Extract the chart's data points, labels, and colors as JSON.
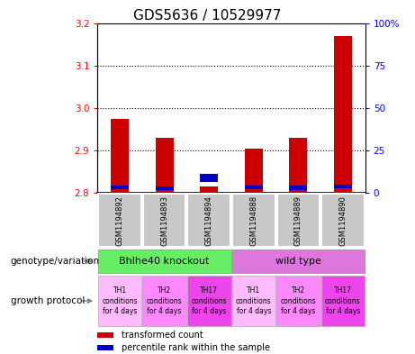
{
  "title": "GDS5636 / 10529977",
  "samples": [
    "GSM1194892",
    "GSM1194893",
    "GSM1194894",
    "GSM1194888",
    "GSM1194889",
    "GSM1194890"
  ],
  "red_values": [
    2.975,
    2.93,
    2.815,
    2.905,
    2.93,
    3.17
  ],
  "blue_values": [
    2.808,
    2.806,
    2.825,
    2.808,
    2.807,
    2.81
  ],
  "blue_heights": [
    0.01,
    0.01,
    0.02,
    0.01,
    0.01,
    0.01
  ],
  "y_min": 2.8,
  "y_max": 3.2,
  "y_ticks": [
    2.8,
    2.9,
    3.0,
    3.1,
    3.2
  ],
  "y_right_ticks": [
    0,
    25,
    50,
    75,
    100
  ],
  "genotype_groups": [
    {
      "label": "Bhlhe40 knockout",
      "start": 0,
      "end": 3,
      "color": "#66ee66"
    },
    {
      "label": "wild type",
      "start": 3,
      "end": 6,
      "color": "#dd77dd"
    }
  ],
  "growth_protocol_labels": [
    "TH1\nconditions\nfor 4 days",
    "TH2\nconditions\nfor 4 days",
    "TH17\nconditions\nfor 4 days",
    "TH1\nconditions\nfor 4 days",
    "TH2\nconditions\nfor 4 days",
    "TH17\nconditions\nfor 4 days"
  ],
  "growth_protocol_colors": [
    "#ffbbff",
    "#ff88ff",
    "#ee44ee",
    "#ffbbff",
    "#ff88ff",
    "#ee44ee"
  ],
  "legend_red": "transformed count",
  "legend_blue": "percentile rank within the sample",
  "bar_color_red": "#cc0000",
  "bar_color_blue": "#0000cc",
  "sample_bg_color": "#c8c8c8",
  "title_fontsize": 11,
  "tick_fontsize": 7.5,
  "sample_fontsize": 6,
  "geno_fontsize": 8,
  "prot_fontsize": 5.5,
  "label_fontsize": 7.5,
  "legend_fontsize": 7,
  "bar_width": 0.4
}
